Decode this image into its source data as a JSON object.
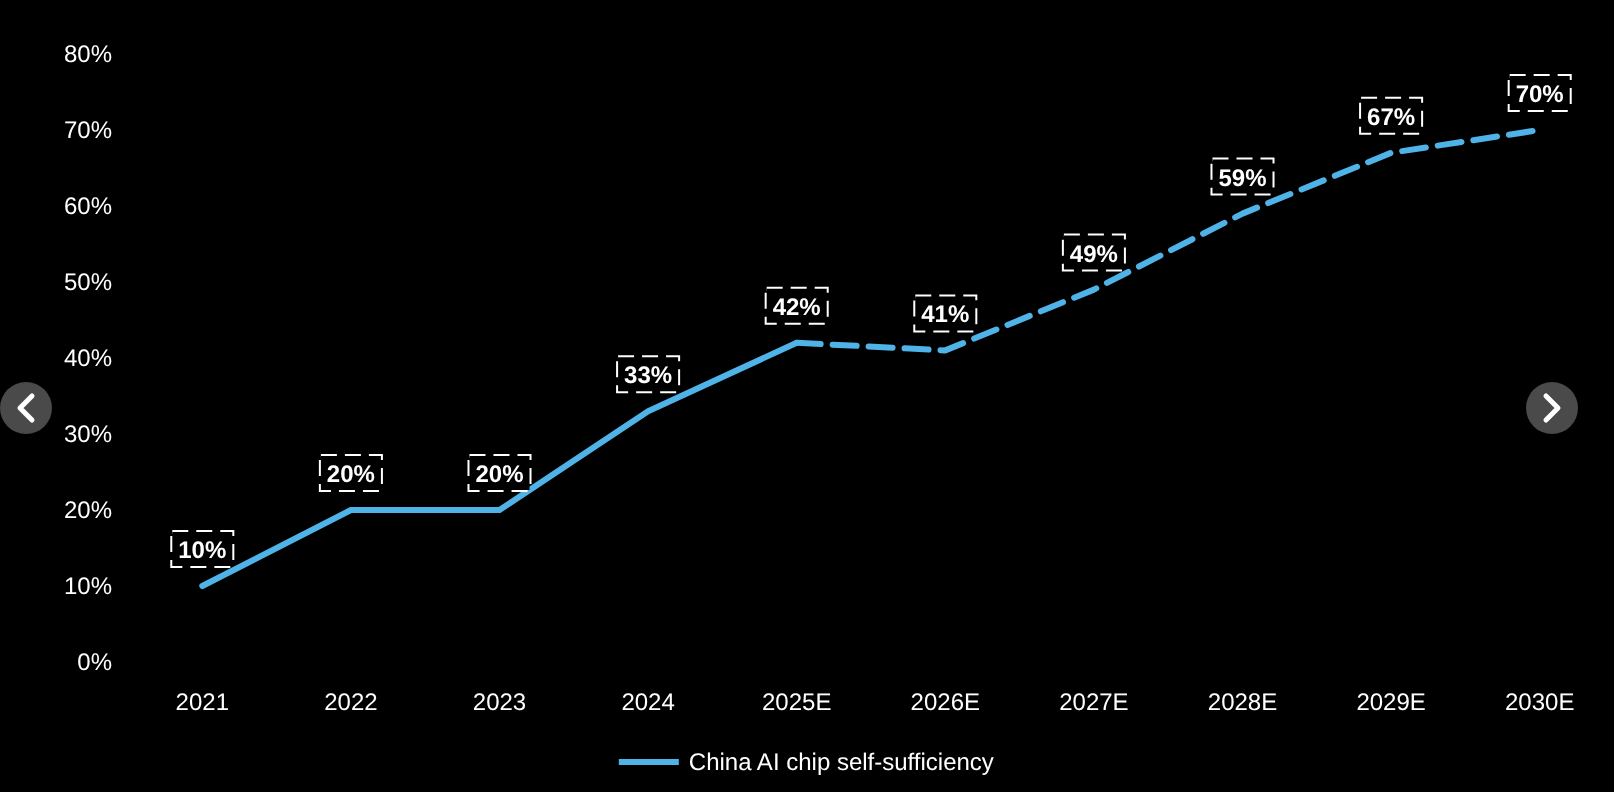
{
  "chart_data": {
    "type": "line",
    "categories": [
      "2021",
      "2022",
      "2023",
      "2024",
      "2025E",
      "2026E",
      "2027E",
      "2028E",
      "2029E",
      "2030E"
    ],
    "series": [
      {
        "name": "China AI chip self-sufficiency",
        "color": "#4fb3e8",
        "line_style": "solid",
        "values": [
          10,
          20,
          20,
          33,
          42,
          null,
          null,
          null,
          null,
          null
        ],
        "value_labels": [
          "10%",
          "20%",
          "20%",
          "33%",
          "42%",
          null,
          null,
          null,
          null,
          null
        ]
      },
      {
        "color": "#4fb3e8",
        "line_style": "dashed",
        "values": [
          null,
          null,
          null,
          null,
          42,
          41,
          49,
          59,
          67,
          70
        ],
        "value_labels": [
          null,
          null,
          null,
          null,
          null,
          "41%",
          "49%",
          "59%",
          "67%",
          "70%"
        ]
      }
    ],
    "ylim": [
      0,
      80
    ],
    "yticks": [
      {
        "value": 0,
        "label": "0%"
      },
      {
        "value": 10,
        "label": "10%"
      },
      {
        "value": 20,
        "label": "20%"
      },
      {
        "value": 30,
        "label": "30%"
      },
      {
        "value": 40,
        "label": "40%"
      },
      {
        "value": 50,
        "label": "50%"
      },
      {
        "value": 60,
        "label": "60%"
      },
      {
        "value": 70,
        "label": "70%"
      },
      {
        "value": 80,
        "label": "80%"
      }
    ],
    "grid": false,
    "legend": "bottom",
    "marker": "none"
  }
}
